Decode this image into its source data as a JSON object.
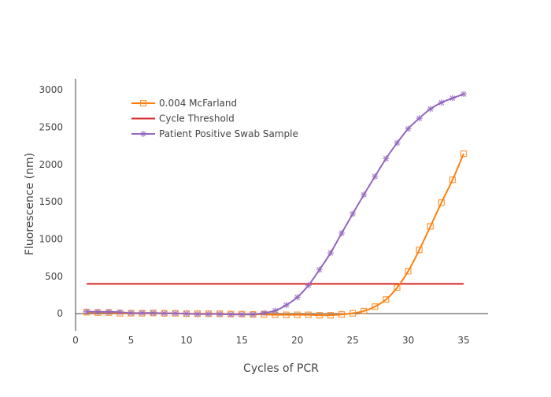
{
  "chart_data": {
    "type": "line",
    "title": "",
    "xlabel": "Cycles of PCR",
    "ylabel": "Fluorescence (nm)",
    "xlim": [
      0,
      37.2
    ],
    "ylim": [
      -230,
      3150
    ],
    "xticks": [
      0,
      5,
      10,
      15,
      20,
      25,
      30,
      35
    ],
    "yticks": [
      0,
      500,
      1000,
      1500,
      2000,
      2500,
      3000
    ],
    "grid": false,
    "legend_placement": "top-left",
    "series": [
      {
        "name": "0.004 McFarland",
        "color": "#ff7f0e",
        "marker": "square-open",
        "x": [
          1,
          2,
          3,
          4,
          5,
          6,
          7,
          8,
          9,
          10,
          11,
          12,
          13,
          14,
          15,
          16,
          17,
          18,
          19,
          20,
          21,
          22,
          23,
          24,
          25,
          26,
          27,
          28,
          29,
          30,
          31,
          32,
          33,
          34,
          35
        ],
        "y": [
          20,
          15,
          15,
          5,
          5,
          5,
          10,
          5,
          5,
          0,
          0,
          0,
          0,
          -5,
          -5,
          -10,
          -10,
          -15,
          -15,
          -15,
          -15,
          -20,
          -20,
          -10,
          5,
          35,
          95,
          190,
          350,
          570,
          855,
          1170,
          1490,
          1795,
          2145
        ]
      },
      {
        "name": "Cycle Threshold",
        "color": "#d62728",
        "marker": "none",
        "x": [
          1,
          35
        ],
        "y": [
          400,
          400
        ]
      },
      {
        "name": "Patient Positive Swab Sample",
        "color": "#9467bd",
        "marker": "asterisk",
        "x": [
          1,
          2,
          3,
          4,
          5,
          6,
          7,
          8,
          9,
          10,
          11,
          12,
          13,
          14,
          15,
          16,
          17,
          18,
          19,
          20,
          21,
          22,
          23,
          24,
          25,
          26,
          27,
          28,
          29,
          30,
          31,
          32,
          33,
          34,
          35
        ],
        "y": [
          30,
          25,
          25,
          20,
          10,
          10,
          10,
          5,
          5,
          0,
          -5,
          -5,
          -5,
          -10,
          -10,
          -10,
          10,
          40,
          115,
          220,
          380,
          590,
          815,
          1080,
          1340,
          1595,
          1840,
          2080,
          2290,
          2480,
          2620,
          2745,
          2830,
          2890,
          2945
        ]
      }
    ]
  }
}
